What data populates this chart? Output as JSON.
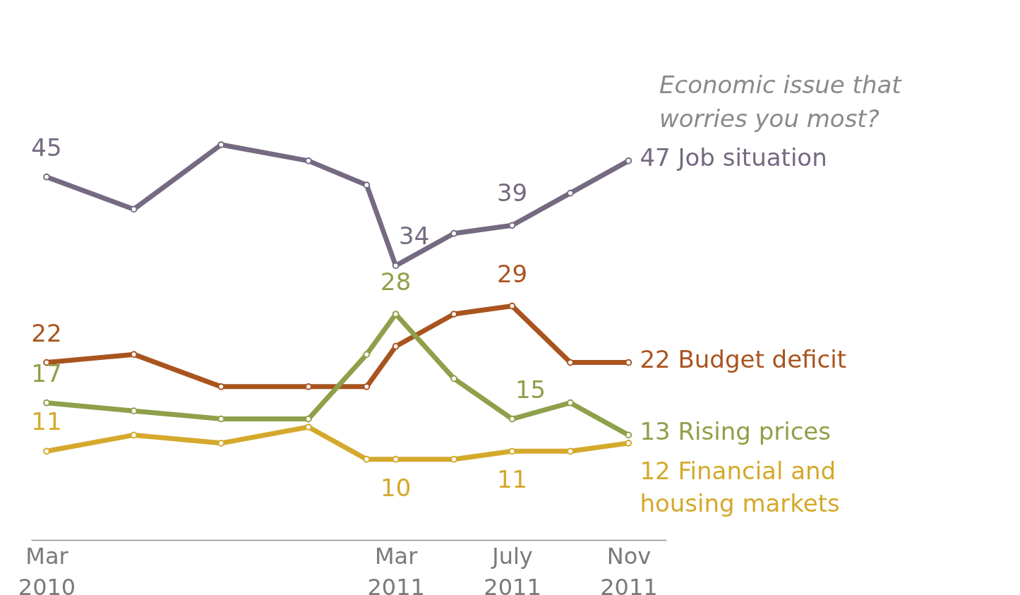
{
  "chart_data": {
    "type": "line",
    "title": "Economic issue that worries you most?",
    "x": [
      "2010-03",
      "2010-06",
      "2010-09",
      "2010-12",
      "2011-02",
      "2011-03",
      "2011-05",
      "2011-07",
      "2011-09",
      "2011-11"
    ],
    "xlim": [
      "2010-02-15",
      "2011-12-10"
    ],
    "xticks": [
      {
        "value": "2010-03",
        "label": "Mar\n2010"
      },
      {
        "value": "2011-03",
        "label": "Mar\n2011"
      },
      {
        "value": "2011-07",
        "label": "July\n2011"
      },
      {
        "value": "2011-11",
        "label": "Nov\n2011"
      }
    ],
    "series": [
      {
        "name": "Job situation",
        "color": "#756a81",
        "values": [
          45,
          41,
          49,
          47,
          44,
          34,
          38,
          39,
          43,
          47
        ],
        "value_labels": [
          "45",
          null,
          null,
          null,
          null,
          "34",
          null,
          "39",
          null,
          "47"
        ]
      },
      {
        "name": "Budget deficit",
        "color": "#a9541f",
        "values": [
          22,
          23,
          19,
          19,
          19,
          24,
          28,
          29,
          22,
          22
        ],
        "value_labels": [
          "22",
          null,
          null,
          null,
          null,
          null,
          null,
          "29",
          null,
          "22"
        ]
      },
      {
        "name": "Rising prices",
        "color": "#8fa04a",
        "values": [
          17,
          16,
          15,
          15,
          23,
          28,
          20,
          15,
          17,
          13
        ],
        "value_labels": [
          "17",
          null,
          null,
          null,
          null,
          "28",
          null,
          "15",
          null,
          "13"
        ]
      },
      {
        "name": "Financial and housing markets",
        "color": "#d4a92c",
        "values": [
          11,
          13,
          12,
          14,
          10,
          10,
          10,
          11,
          11,
          12
        ],
        "value_labels": [
          "11",
          null,
          null,
          null,
          null,
          "10",
          null,
          "11",
          null,
          "12"
        ]
      }
    ],
    "marker": "circle",
    "line_style": "solid",
    "grid": false,
    "legend": false,
    "tick_labels": "x"
  }
}
